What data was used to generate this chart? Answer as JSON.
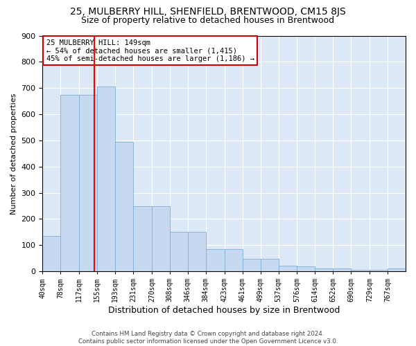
{
  "title": "25, MULBERRY HILL, SHENFIELD, BRENTWOOD, CM15 8JS",
  "subtitle": "Size of property relative to detached houses in Brentwood",
  "xlabel": "Distribution of detached houses by size in Brentwood",
  "ylabel": "Number of detached properties",
  "bar_edges": [
    40,
    78,
    117,
    155,
    193,
    231,
    270,
    308,
    346,
    384,
    423,
    461,
    499,
    537,
    576,
    614,
    652,
    690,
    729,
    767,
    805
  ],
  "bar_heights": [
    135,
    675,
    675,
    705,
    495,
    250,
    250,
    150,
    150,
    85,
    85,
    48,
    48,
    22,
    18,
    10,
    10,
    5,
    5,
    10
  ],
  "bar_color": "#c6d9f0",
  "bar_edge_color": "#7bafd4",
  "red_line_x": 149,
  "annotation_text": "25 MULBERRY HILL: 149sqm\n← 54% of detached houses are smaller (1,415)\n45% of semi-detached houses are larger (1,186) →",
  "annotation_box_color": "white",
  "annotation_box_edge_color": "#cc0000",
  "footer_text": "Contains HM Land Registry data © Crown copyright and database right 2024.\nContains public sector information licensed under the Open Government Licence v3.0.",
  "ylim": [
    0,
    900
  ],
  "yticks": [
    0,
    100,
    200,
    300,
    400,
    500,
    600,
    700,
    800,
    900
  ],
  "background_color": "#dce8f5",
  "grid_color": "white",
  "title_fontsize": 10,
  "subtitle_fontsize": 9,
  "tick_label_fontsize": 7,
  "ylabel_fontsize": 8,
  "xlabel_fontsize": 9
}
